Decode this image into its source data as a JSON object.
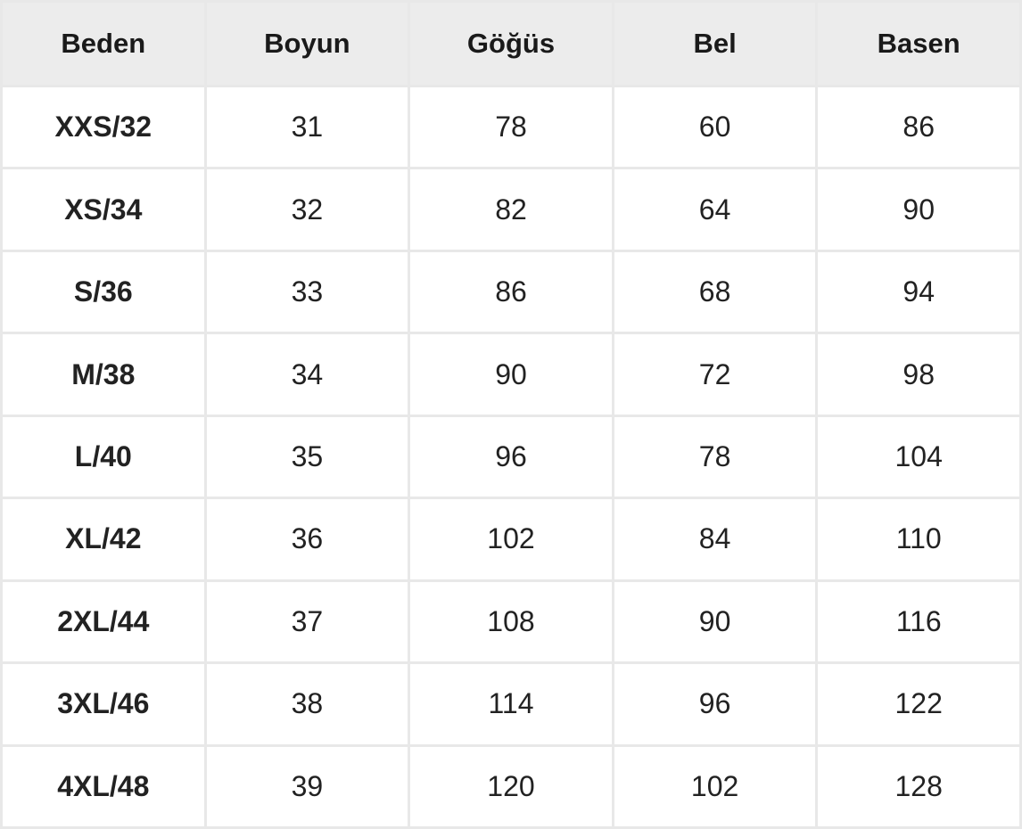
{
  "table": {
    "headers": [
      "Beden",
      "Boyun",
      "Göğüs",
      "Bel",
      "Basen"
    ],
    "rows": [
      [
        "XXS/32",
        "31",
        "78",
        "60",
        "86"
      ],
      [
        "XS/34",
        "32",
        "82",
        "64",
        "90"
      ],
      [
        "S/36",
        "33",
        "86",
        "68",
        "94"
      ],
      [
        "M/38",
        "34",
        "90",
        "72",
        "98"
      ],
      [
        "L/40",
        "35",
        "96",
        "78",
        "104"
      ],
      [
        "XL/42",
        "36",
        "102",
        "84",
        "110"
      ],
      [
        "2XL/44",
        "37",
        "108",
        "90",
        "116"
      ],
      [
        "3XL/46",
        "38",
        "114",
        "96",
        "122"
      ],
      [
        "4XL/48",
        "39",
        "120",
        "102",
        "128"
      ]
    ]
  },
  "colors": {
    "header_bg": "#ececec",
    "border": "#e8e8e8",
    "text": "#222222"
  }
}
